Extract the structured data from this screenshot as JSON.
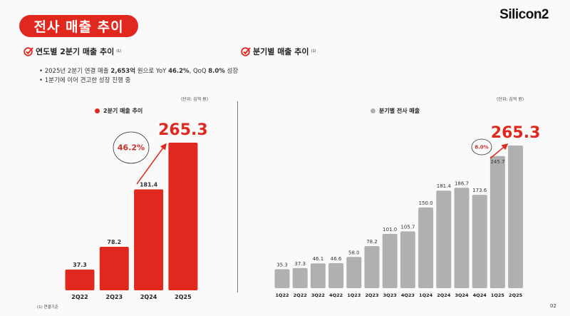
{
  "header": {
    "title": "전사 매출 추이",
    "logo": "Silicon2"
  },
  "left": {
    "section_title": "연도별 2분기 매출 추이",
    "section_note": "(1)",
    "bullets": [
      {
        "pre": "2025년 2분기 연결 매출 ",
        "b1": "2,653억",
        "mid": " 원으로 YoY ",
        "b2": "46.2%",
        "mid2": ", QoQ ",
        "b3": "8.0%",
        "post": " 성장"
      },
      {
        "text": "1분기에 이어 견고한 성장 진행 중"
      }
    ],
    "unit": "(단위: 십억 원)"
  },
  "right": {
    "section_title": "분기별 매출 추이",
    "section_note": "(1)",
    "unit": "(단위: 십억 원)"
  },
  "footnote": "(1) 연결기준",
  "page_number": "02",
  "chart_data": [
    {
      "type": "bar",
      "legend": "2분기 매출 추이",
      "legend_placement": "top-center",
      "color": "#e0281f",
      "categories": [
        "2Q22",
        "2Q23",
        "2Q24",
        "2Q25"
      ],
      "values": [
        37.3,
        78.2,
        181.4,
        265.3
      ],
      "labels": [
        "37.3",
        "78.2",
        "181.4",
        "265.3"
      ],
      "highlight_label": "265.3",
      "growth_annotation": "46.2%",
      "grid": false
    },
    {
      "type": "bar",
      "legend": "분기별 전사 매출",
      "legend_placement": "top-center",
      "color": "#b0b0b0",
      "categories": [
        "1Q22",
        "2Q22",
        "3Q22",
        "4Q22",
        "1Q23",
        "2Q23",
        "3Q23",
        "4Q23",
        "1Q24",
        "2Q24",
        "3Q24",
        "4Q24",
        "1Q25",
        "2Q25"
      ],
      "values": [
        35.3,
        37.3,
        46.1,
        46.6,
        58.0,
        78.2,
        101.0,
        105.7,
        150.0,
        181.4,
        186.7,
        173.6,
        245.7,
        265.3
      ],
      "labels": [
        "35.3",
        "37.3",
        "46.1",
        "46.6",
        "58.0",
        "78.2",
        "101.0",
        "105.7",
        "150.0",
        "181.4",
        "186.7",
        "173.6",
        "245.7",
        "265.3"
      ],
      "highlight_label": "265.3",
      "growth_annotation": "8.0%",
      "grid": false
    }
  ],
  "colors": {
    "accent": "#e0281f",
    "gray_bar": "#b0b0b0"
  }
}
